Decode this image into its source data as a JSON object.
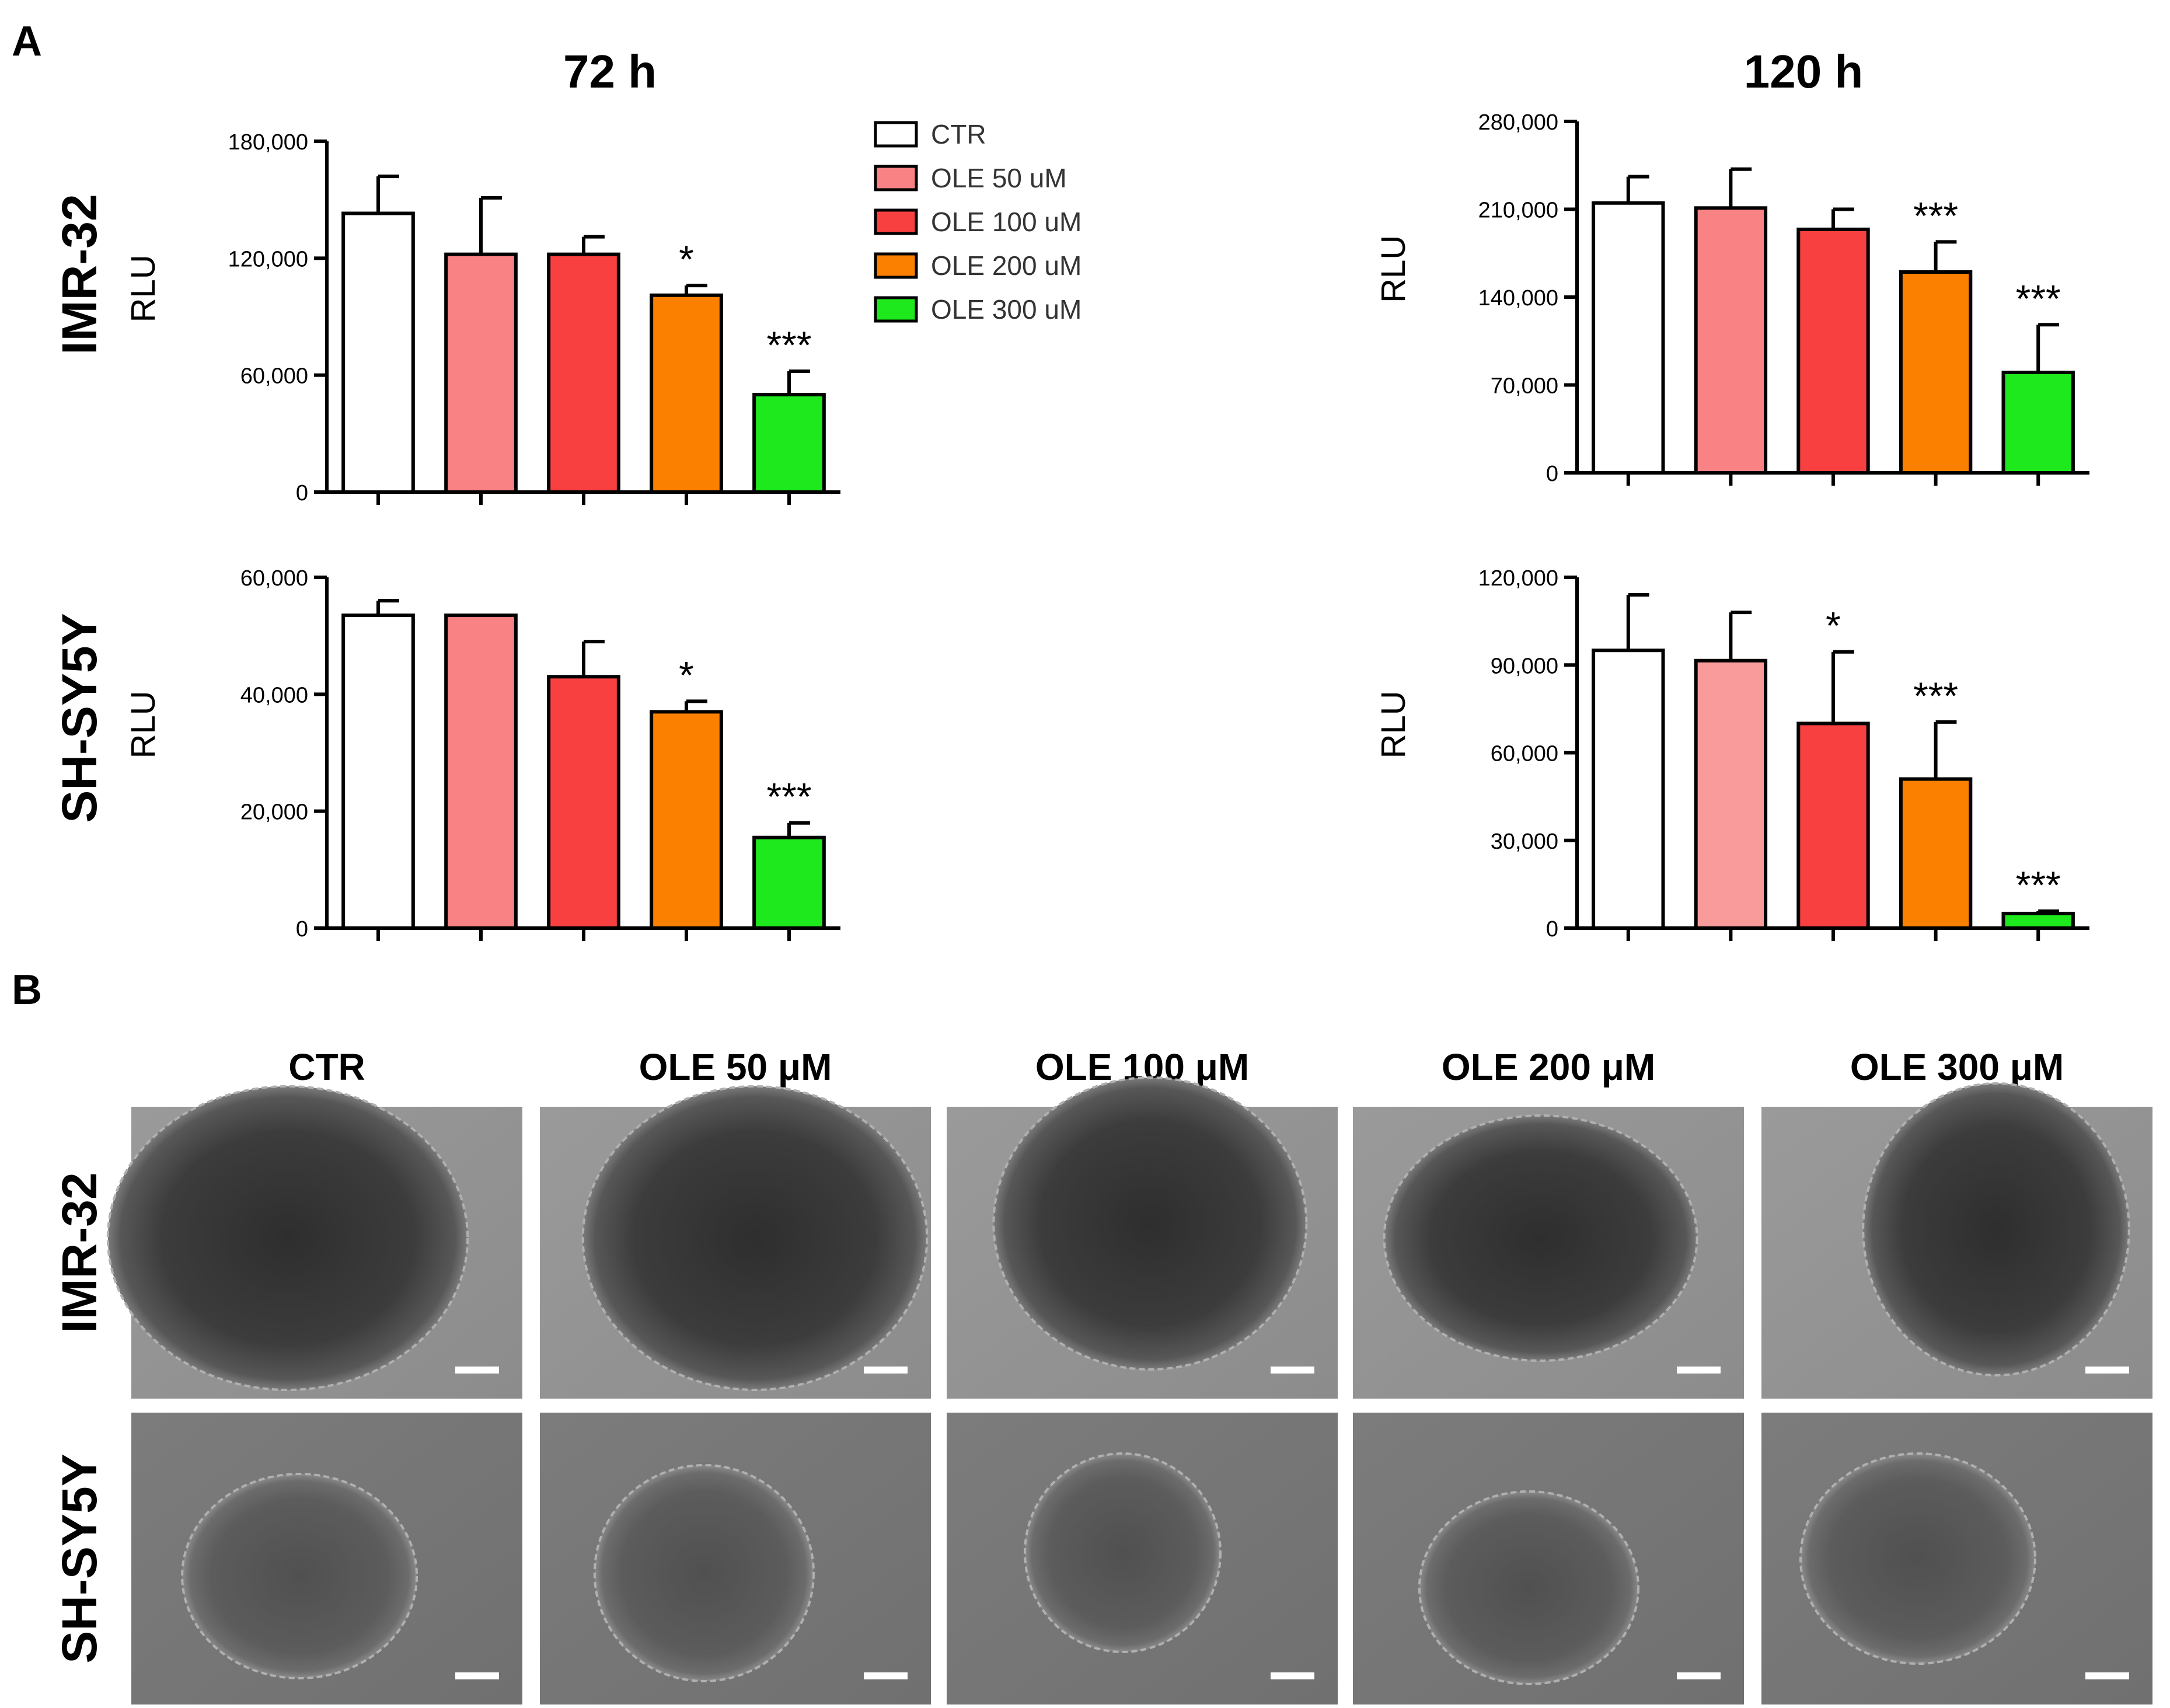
{
  "figure": {
    "panel_a_label": "A",
    "panel_b_label": "B",
    "time_headers": [
      "72 h",
      "120 h"
    ],
    "row_labels": [
      "IMR-32",
      "SH-SY5Y"
    ],
    "legend": [
      {
        "label": "CTR",
        "color": "#ffffff"
      },
      {
        "label": "OLE 50 uM",
        "color": "#f98284"
      },
      {
        "label": "OLE 100 uM",
        "color": "#f84040"
      },
      {
        "label": "OLE 200 uM",
        "color": "#fc8000"
      },
      {
        "label": "OLE 300 uM",
        "color": "#1de91c"
      }
    ],
    "micro_column_labels": [
      "CTR",
      "OLE 50 μM",
      "OLE 100 μM",
      "OLE 200 μM",
      "OLE 300 μM"
    ],
    "micro_row_labels": [
      "IMR-32",
      "SH-SY5Y"
    ]
  },
  "chart_data": [
    {
      "type": "bar",
      "title": "72 h",
      "row": "IMR-32",
      "ylabel": "RLU",
      "ylim": [
        0,
        180000
      ],
      "yticks": [
        0,
        60000,
        120000,
        180000
      ],
      "ytick_labels": [
        "0",
        "60,000",
        "120,000",
        "180,000"
      ],
      "categories": [
        "CTR",
        "OLE 50 uM",
        "OLE 100 uM",
        "OLE 200 uM",
        "OLE 300 uM"
      ],
      "values": [
        143000,
        122000,
        122000,
        101000,
        50000
      ],
      "errors": [
        19000,
        29000,
        9000,
        5000,
        12000
      ],
      "significance": [
        "",
        "",
        "",
        "*",
        "***"
      ],
      "colors": [
        "#ffffff",
        "#f98284",
        "#f84040",
        "#fc8000",
        "#1de91c"
      ]
    },
    {
      "type": "bar",
      "title": "120 h",
      "row": "IMR-32",
      "ylabel": "RLU",
      "ylim": [
        0,
        280000
      ],
      "yticks": [
        0,
        70000,
        140000,
        210000,
        280000
      ],
      "ytick_labels": [
        "0",
        "70,000",
        "140,000",
        "210,000",
        "280,000"
      ],
      "categories": [
        "CTR",
        "OLE 50 uM",
        "OLE 100 uM",
        "OLE 200 uM",
        "OLE 300 uM"
      ],
      "values": [
        215000,
        211000,
        194000,
        160000,
        80000
      ],
      "errors": [
        21000,
        31000,
        16000,
        24000,
        38000
      ],
      "significance": [
        "",
        "",
        "",
        "***",
        "***"
      ],
      "colors": [
        "#ffffff",
        "#f98284",
        "#f84040",
        "#fc8000",
        "#1de91c"
      ]
    },
    {
      "type": "bar",
      "title": "72 h",
      "row": "SH-SY5Y",
      "ylabel": "RLU",
      "ylim": [
        0,
        60000
      ],
      "yticks": [
        0,
        20000,
        40000,
        60000
      ],
      "ytick_labels": [
        "0",
        "20,000",
        "40,000",
        "60,000"
      ],
      "categories": [
        "CTR",
        "OLE 50 uM",
        "OLE 100 uM",
        "OLE 200 uM",
        "OLE 300 uM"
      ],
      "values": [
        53500,
        53500,
        43000,
        37000,
        15500
      ],
      "errors": [
        2500,
        0,
        6000,
        1800,
        2500
      ],
      "significance": [
        "",
        "",
        "",
        "*",
        "***"
      ],
      "colors": [
        "#ffffff",
        "#f98284",
        "#f84040",
        "#fc8000",
        "#1de91c"
      ]
    },
    {
      "type": "bar",
      "title": "120 h",
      "row": "SH-SY5Y",
      "ylabel": "RLU",
      "ylim": [
        0,
        120000
      ],
      "yticks": [
        0,
        30000,
        60000,
        90000,
        120000
      ],
      "ytick_labels": [
        "0",
        "30,000",
        "60,000",
        "90,000",
        "120,000"
      ],
      "categories": [
        "CTR",
        "OLE 50 uM",
        "OLE 100 uM",
        "OLE 200 uM",
        "OLE 300 uM"
      ],
      "values": [
        95000,
        91500,
        70000,
        51000,
        5000
      ],
      "errors": [
        19000,
        16500,
        24500,
        19500,
        800
      ],
      "significance": [
        "",
        "",
        "*",
        "***",
        "***"
      ],
      "colors": [
        "#ffffff",
        "#fa9b9b",
        "#f84040",
        "#fc8000",
        "#1de91c"
      ]
    }
  ]
}
